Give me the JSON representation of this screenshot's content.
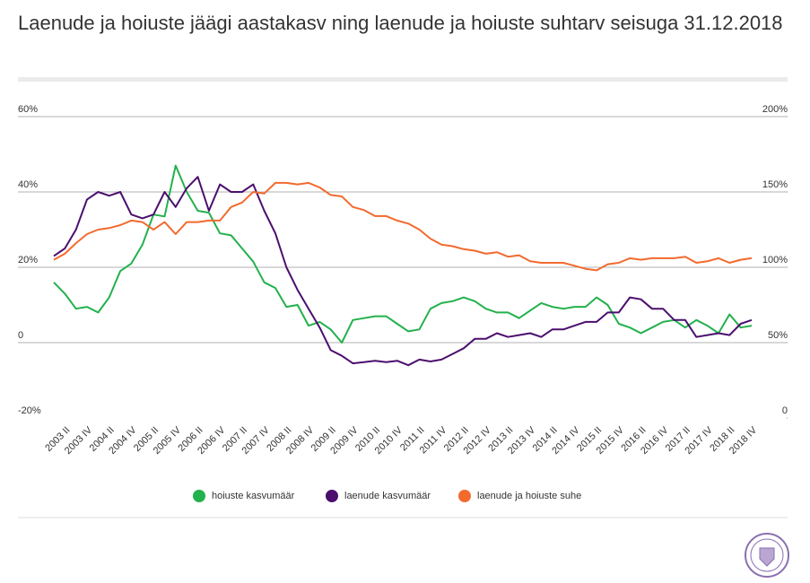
{
  "chart_data": {
    "type": "line",
    "title": "Laenude ja hoiuste jäägi aastakasv ning laenude ja hoiuste suhtarv seisuga 31.12.2018",
    "categories": [
      null,
      "2003 II",
      null,
      "2003 IV",
      null,
      "2004 II",
      null,
      "2004 IV",
      null,
      "2005 II",
      null,
      "2005 IV",
      null,
      "2006 II",
      null,
      "2006 IV",
      null,
      "2007 II",
      null,
      "2007 IV",
      null,
      "2008 II",
      null,
      "2008 IV",
      null,
      "2009 II",
      null,
      "2009 IV",
      null,
      "2010 II",
      null,
      "2010 IV",
      null,
      "2011 II",
      null,
      "2011 IV",
      null,
      "2012 II",
      null,
      "2012 IV",
      null,
      "2013 II",
      null,
      "2013 IV",
      null,
      "2014 II",
      null,
      "2014 IV",
      null,
      "2015 II",
      null,
      "2015 IV",
      null,
      "2016 II",
      null,
      "2016 IV",
      null,
      "2017 II",
      null,
      "2017 IV",
      null,
      "2018 II",
      null,
      "2018 IV"
    ],
    "series": [
      {
        "name": "hoiuste kasvumäär",
        "color": "#22b14c",
        "values": [
          16,
          13,
          9,
          9.5,
          8,
          12,
          19,
          21,
          26,
          34,
          33.5,
          47,
          40,
          35,
          34.5,
          29,
          28.5,
          25,
          21.5,
          16,
          14.5,
          9.5,
          10,
          4.5,
          5.5,
          3.5,
          0,
          6,
          6.5,
          7,
          7,
          5,
          3,
          3.5,
          9,
          10.5,
          11,
          12,
          11,
          9,
          8,
          8,
          6.5,
          8.5,
          10.5,
          9.5,
          9,
          9.5,
          9.5,
          12,
          10,
          5,
          4,
          2.5,
          4,
          5.5,
          6,
          4,
          6,
          4.5,
          2.5,
          7.5,
          4,
          4.5
        ]
      },
      {
        "name": "laenude kasvumäär",
        "color": "#4b0f6e",
        "values": [
          23,
          25,
          30,
          38,
          40,
          39,
          40,
          34,
          33,
          34,
          40,
          36,
          41,
          44,
          35,
          42,
          40,
          40,
          42,
          35,
          29,
          20,
          14,
          9,
          4,
          -2,
          -3.5,
          -5.5,
          -5.2,
          -4.8,
          -5.2,
          -4.8,
          -6,
          -4.5,
          -5,
          -4.5,
          -3,
          -1.5,
          1,
          1,
          2.5,
          1.5,
          2,
          2.5,
          1.5,
          3.5,
          3.5,
          4.5,
          5.5,
          5.5,
          8,
          8,
          12,
          11.5,
          9,
          9,
          6,
          6,
          1.5,
          2,
          2.5,
          2,
          5,
          6
        ]
      },
      {
        "name": "laenude ja hoiuste suhe",
        "color": "#f26a2e",
        "axis": "y2",
        "values": [
          105,
          109,
          116,
          122,
          125,
          126,
          128,
          131,
          130,
          125,
          130,
          122,
          130,
          130,
          131,
          131,
          140,
          143,
          150,
          149,
          156,
          156,
          155,
          156,
          153,
          148,
          147,
          140,
          138,
          134,
          134,
          131,
          129,
          125,
          119,
          115,
          114,
          112,
          111,
          109,
          110,
          107,
          108,
          104,
          103,
          103,
          103,
          101,
          99,
          98,
          102,
          103,
          106,
          105,
          106,
          106,
          106,
          107,
          103,
          104,
          106,
          103,
          105,
          106
        ]
      }
    ],
    "ylim": [
      -20,
      60
    ],
    "yticks": [
      {
        "value": -20,
        "label": "-20%"
      },
      0,
      {
        "value": 20,
        "label": "20%"
      },
      {
        "value": 40,
        "label": "40%"
      },
      {
        "value": 60,
        "label": "60%"
      }
    ],
    "y2lim": [
      0,
      200
    ],
    "y2ticks": [
      0,
      {
        "value": 50,
        "label": "50%"
      },
      {
        "value": 100,
        "label": "100%"
      },
      {
        "value": 150,
        "label": "150%"
      },
      {
        "value": 200,
        "label": "200%"
      }
    ],
    "grid": true,
    "legend": "bottom"
  }
}
